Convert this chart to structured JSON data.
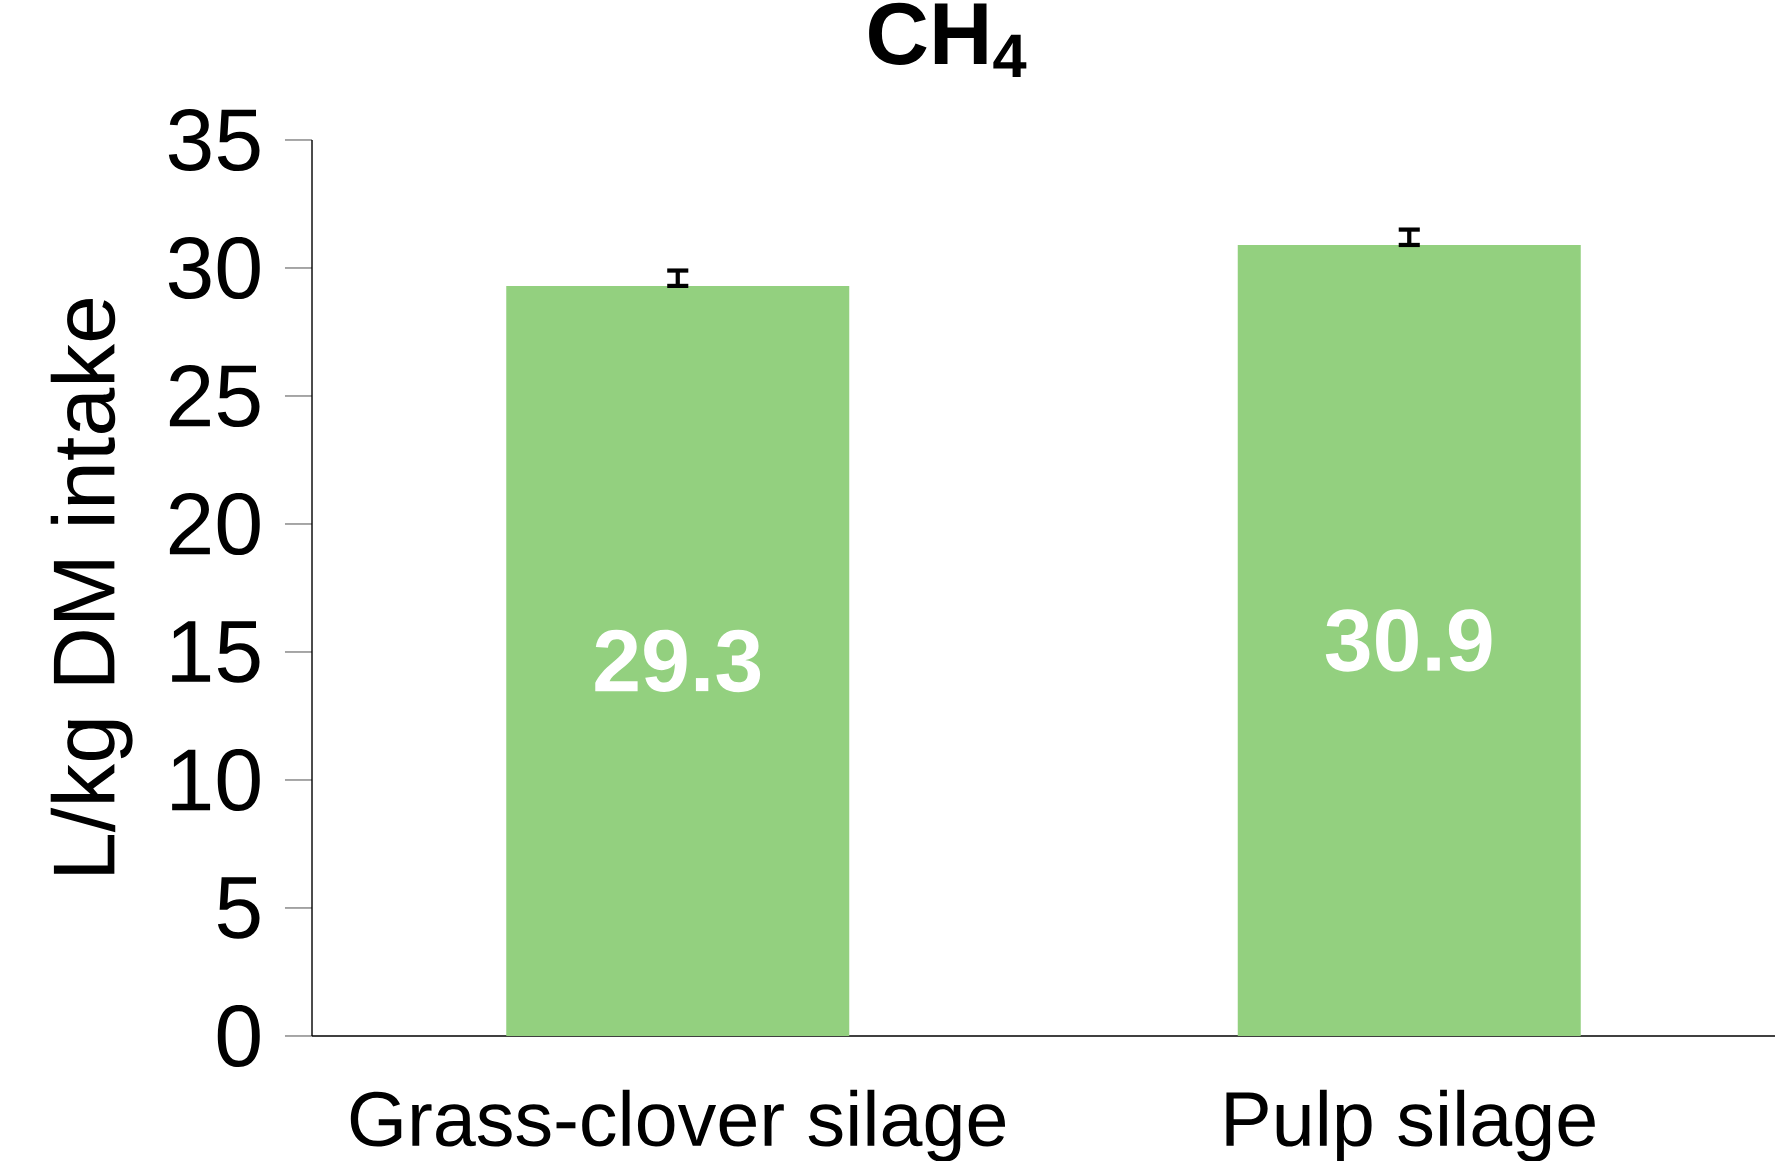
{
  "chart_data": {
    "type": "bar",
    "title": "CH$_{4}$",
    "ylabel": "L/kg DM intake",
    "categories": [
      "Grass-clover silage",
      "Pulp silage"
    ],
    "values": [
      29.3,
      30.9
    ],
    "color": "#93d07f",
    "errors": [
      [
        29.3,
        29.9
      ],
      [
        30.9,
        31.5
      ]
    ],
    "ylim": [
      0,
      35
    ],
    "yticks": [
      0,
      5,
      10,
      15,
      20,
      25,
      30,
      35
    ],
    "data_labels": true,
    "grid": false
  }
}
